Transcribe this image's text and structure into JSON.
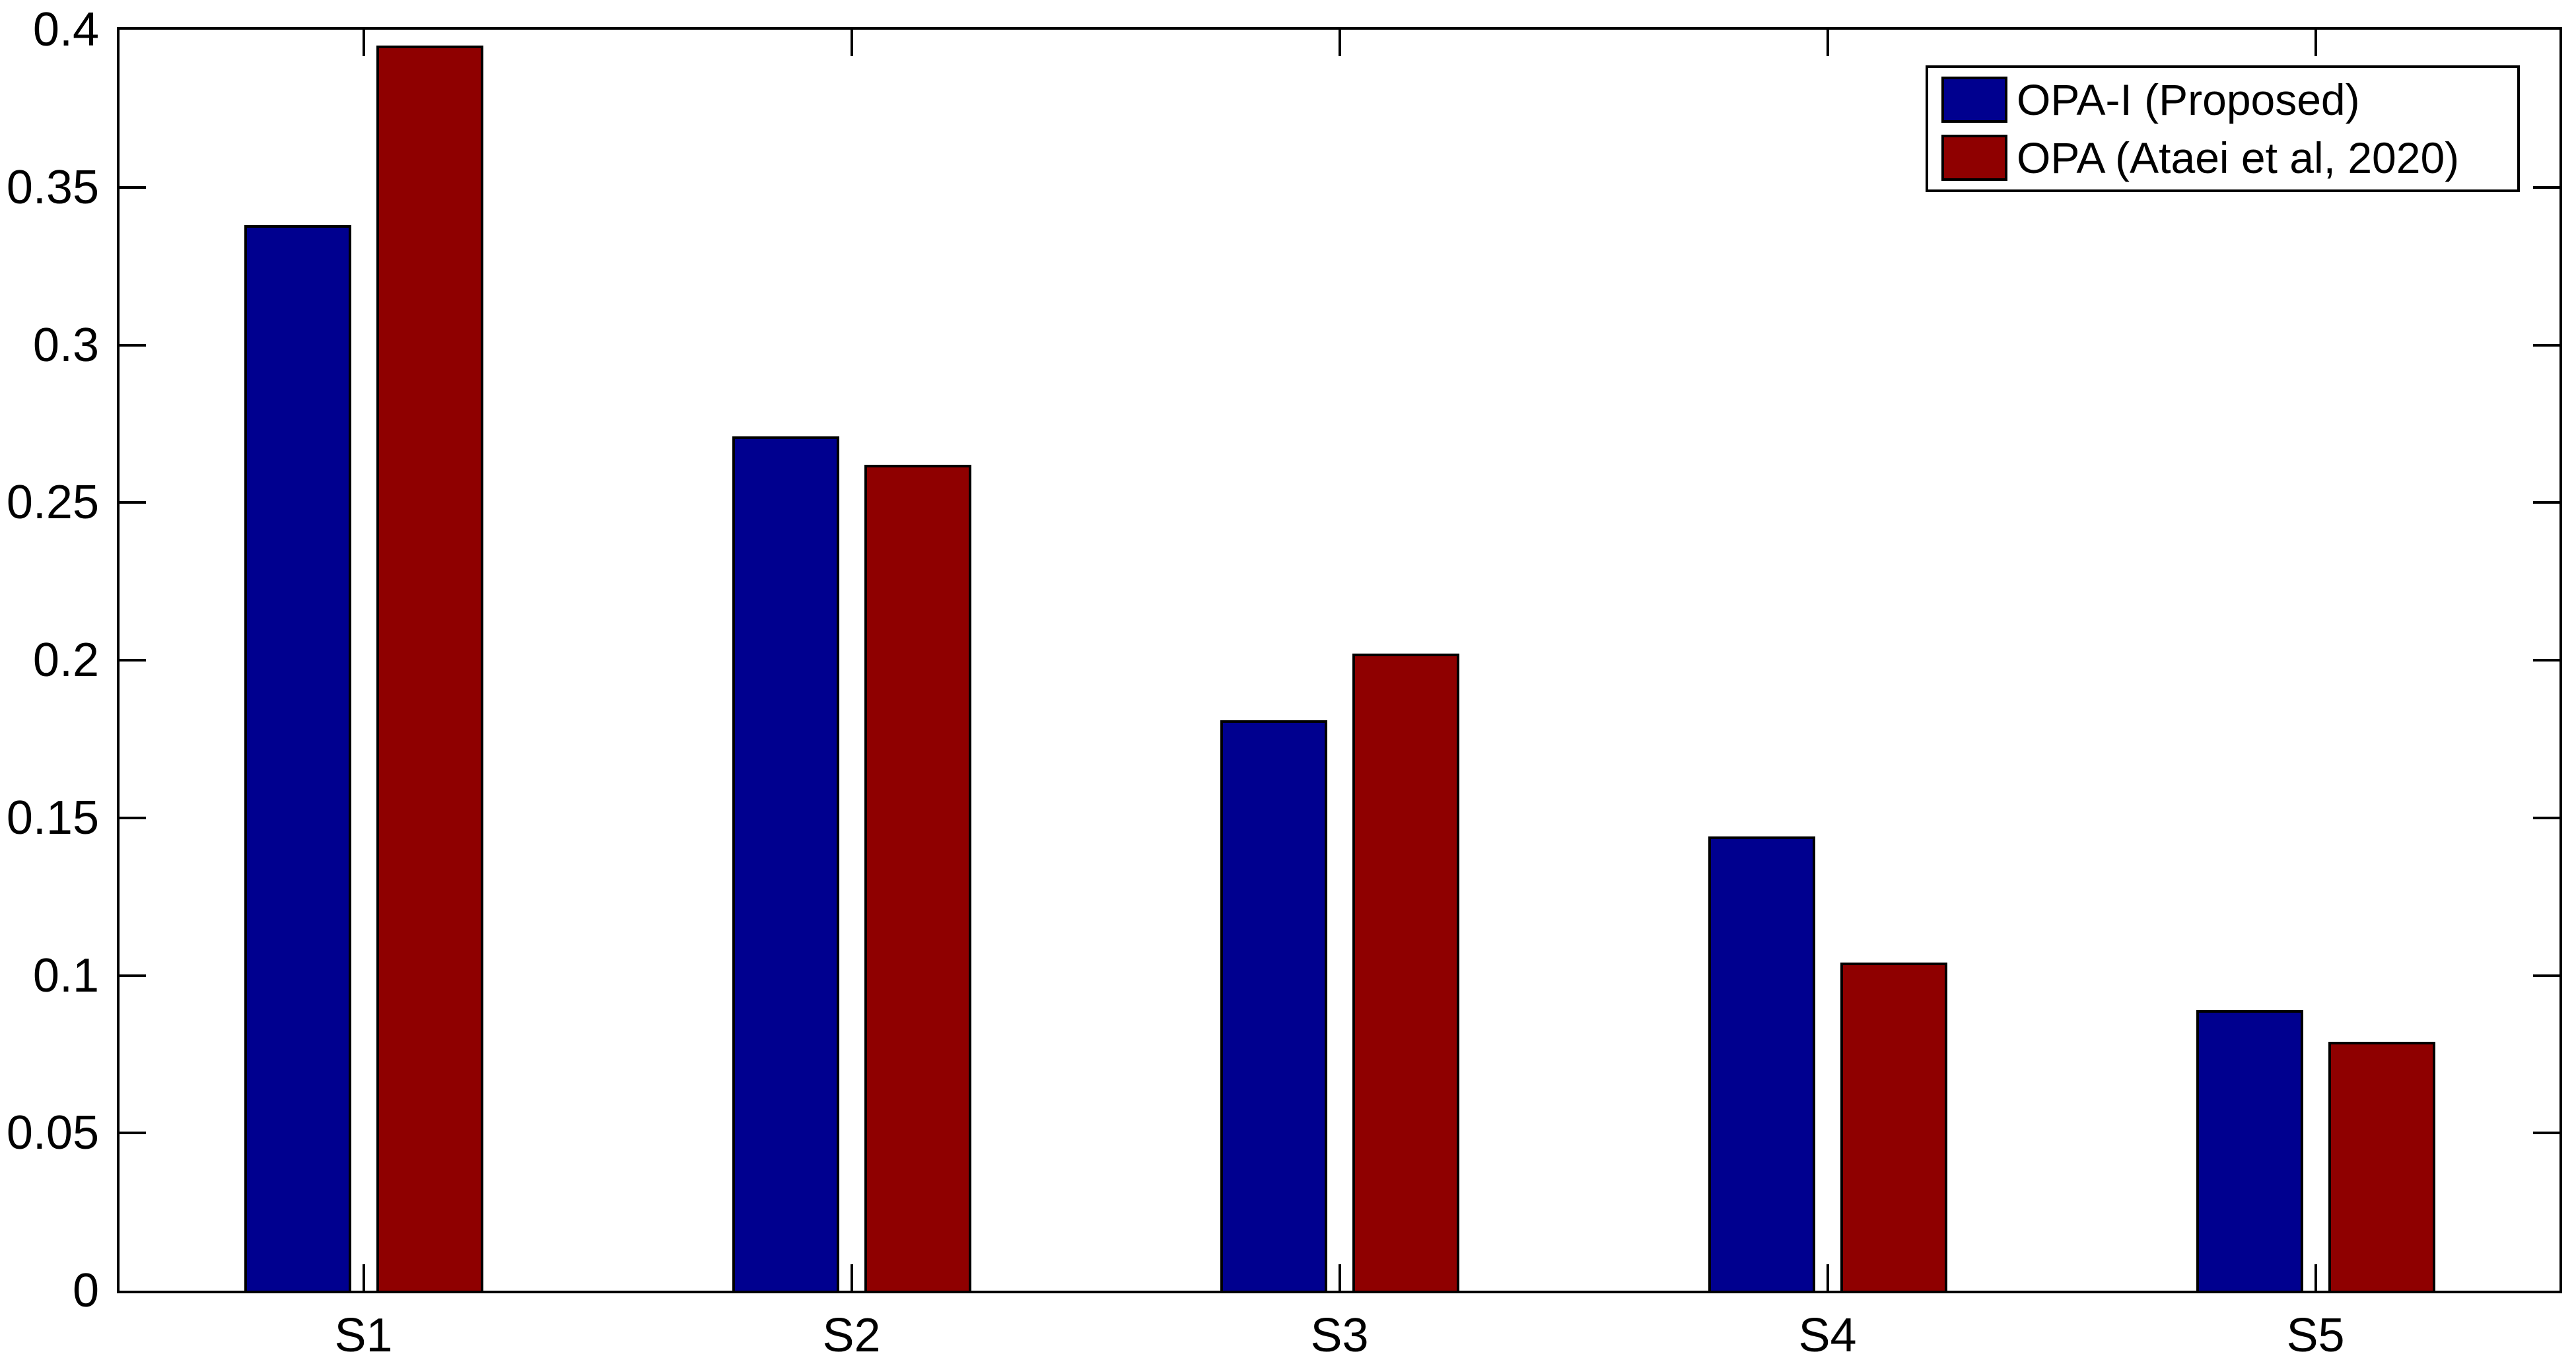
{
  "chart_data": {
    "type": "bar",
    "title": "",
    "xlabel": "",
    "ylabel": "",
    "categories": [
      "S1",
      "S2",
      "S3",
      "S4",
      "S5"
    ],
    "series": [
      {
        "name": "OPA-I (Proposed)",
        "color": "#00008F",
        "values": [
          0.338,
          0.271,
          0.181,
          0.144,
          0.089
        ]
      },
      {
        "name": "OPA (Ataei et al, 2020)",
        "color": "#8F0000",
        "values": [
          0.395,
          0.262,
          0.202,
          0.104,
          0.079
        ]
      }
    ],
    "ylim": [
      0,
      0.4
    ],
    "ytick_step": 0.05,
    "ytick_labels": [
      "0",
      "0.05",
      "0.1",
      "0.15",
      "0.2",
      "0.25",
      "0.3",
      "0.35",
      "0.4"
    ],
    "grid": false,
    "legend_position": "top-right",
    "bar_edge_color": "#000000",
    "axis_color": "#000000",
    "background_color": "#FFFFFF"
  }
}
